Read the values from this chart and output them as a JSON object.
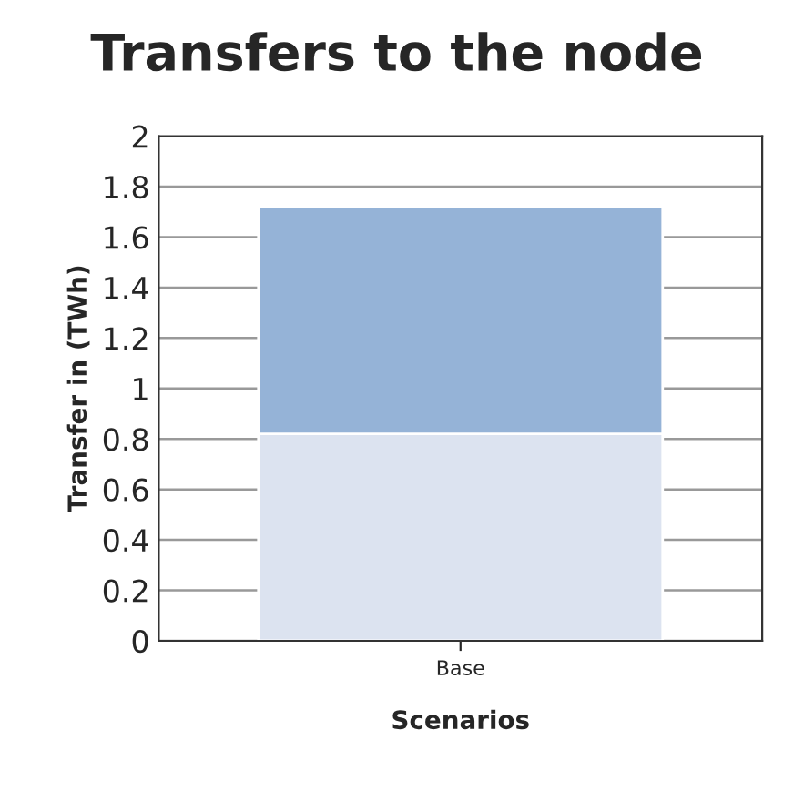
{
  "chart_data": {
    "type": "bar",
    "title": "Transfers to the node",
    "xlabel": "Scenarios",
    "ylabel": "Transfer in (TWh)",
    "categories": [
      "Base"
    ],
    "stacked": true,
    "series": [
      {
        "color": "#dce3f0",
        "values": [
          0.82
        ]
      },
      {
        "color": "#95b3d7",
        "values": [
          0.9
        ]
      }
    ],
    "ylim": [
      0,
      2
    ],
    "yticks": [
      0,
      0.2,
      0.4,
      0.6,
      0.8,
      1,
      1.2,
      1.4,
      1.6,
      1.8,
      2
    ],
    "grid": "y",
    "legend": false
  }
}
